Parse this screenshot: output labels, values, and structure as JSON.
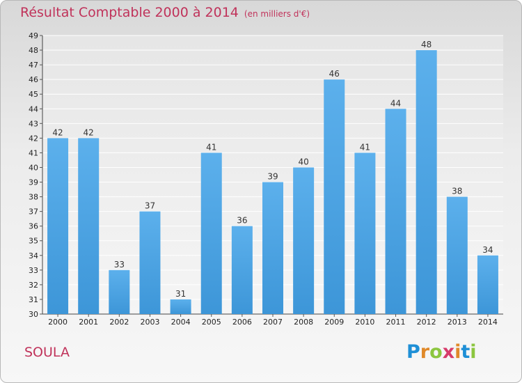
{
  "title": "Résultat Comptable 2000 à 2014",
  "unit_note": "(en milliers d'€)",
  "commune": "SOULA",
  "logo_letters": [
    "P",
    "r",
    "o",
    "x",
    "i",
    "t",
    "i"
  ],
  "colors": {
    "bar": "#3d96d8",
    "title": "#c0325a"
  },
  "chart_data": {
    "type": "bar",
    "title": "Résultat Comptable 2000 à 2014",
    "xlabel": "",
    "ylabel": "",
    "ylim": [
      30,
      49
    ],
    "categories": [
      "2000",
      "2001",
      "2002",
      "2003",
      "2004",
      "2005",
      "2006",
      "2007",
      "2008",
      "2009",
      "2010",
      "2011",
      "2012",
      "2013",
      "2014"
    ],
    "values": [
      42,
      42,
      33,
      37,
      31,
      41,
      36,
      39,
      40,
      46,
      41,
      44,
      48,
      38,
      34
    ],
    "yticks": [
      30,
      31,
      32,
      33,
      34,
      35,
      36,
      37,
      38,
      39,
      40,
      41,
      42,
      43,
      44,
      45,
      46,
      47,
      48,
      49
    ]
  }
}
